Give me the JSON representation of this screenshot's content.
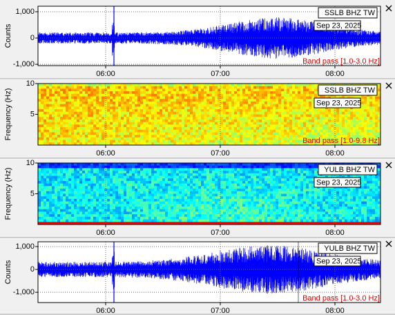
{
  "panels": [
    {
      "type": "waveform",
      "station": "SSLB BHZ TW",
      "date": "Sep 23, 2025",
      "filter": "Band pass [1.0-3.0 Hz]",
      "y_label": "Counts",
      "ylim": [
        -1050,
        1210
      ],
      "yticks": [
        {
          "value": 1000,
          "label": "1,000"
        },
        0,
        {
          "value": -1000,
          "label": "-1,000"
        }
      ],
      "xticks": [
        "06:00",
        "07:00",
        "08:00"
      ]
    },
    {
      "type": "spectrogram",
      "station": "SSLB BHZ TW",
      "date": "Sep 23, 2025",
      "filter": "Band pass [1.0-9.8 Hz]",
      "y_label": "Frequency (Hz)",
      "ylim": [
        0,
        10
      ],
      "yticks": [
        10,
        5
      ],
      "xticks": [
        "06:00",
        "07:00",
        "08:00"
      ]
    },
    {
      "type": "spectrogram",
      "station": "YULB BHZ TW",
      "date": "Sep 23, 2025",
      "y_label": "Frequency (Hz)",
      "ylim": [
        0,
        10
      ],
      "yticks": [
        10,
        5
      ],
      "xticks": [
        "06:00",
        "07:00",
        "08:00"
      ]
    },
    {
      "type": "waveform",
      "station": "YULB BHZ TW",
      "date": "Sep 23, 2025",
      "filter": "Band pass [1.0-3.0 Hz]",
      "y_label": "Counts",
      "ylim": [
        -1450,
        1210
      ],
      "yticks": [
        {
          "value": 1000,
          "label": "1,000"
        },
        0,
        {
          "value": -1000,
          "label": "-1,000"
        }
      ],
      "xticks": [
        "06:00",
        "07:00",
        "08:00"
      ]
    }
  ]
}
